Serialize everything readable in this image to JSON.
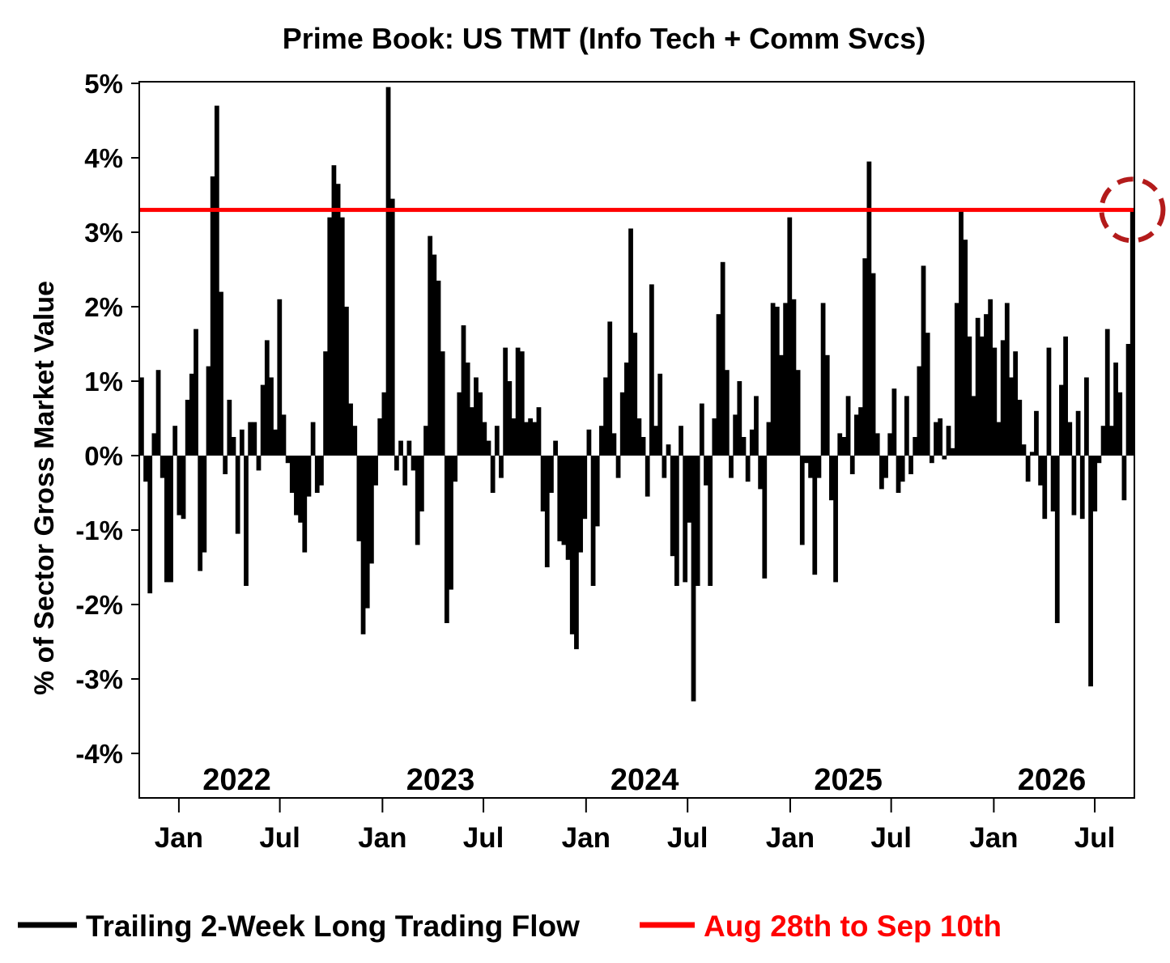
{
  "chart_data": {
    "type": "bar",
    "title": "Prime Book: US TMT (Info Tech + Comm Svcs)",
    "ylabel": "% of Sector Gross Market Value",
    "ylim": [
      -4.5,
      5
    ],
    "yticks": [
      "5%",
      "4%",
      "3%",
      "2%",
      "1%",
      "0%",
      "-1%",
      "-2%",
      "-3%",
      "-4%"
    ],
    "ytick_values": [
      5,
      4,
      3,
      2,
      1,
      0,
      -1,
      -2,
      -3,
      -4
    ],
    "x_start": "2021-10-22",
    "x_end": "2026-09-10",
    "month_ticks": [
      {
        "label": "Jan",
        "date": "2022-01-01"
      },
      {
        "label": "Jul",
        "date": "2022-07-01"
      },
      {
        "label": "Jan",
        "date": "2023-01-01"
      },
      {
        "label": "Jul",
        "date": "2023-07-01"
      },
      {
        "label": "Jan",
        "date": "2024-01-01"
      },
      {
        "label": "Jul",
        "date": "2024-07-01"
      },
      {
        "label": "Jan",
        "date": "2025-01-01"
      },
      {
        "label": "Jul",
        "date": "2025-07-01"
      },
      {
        "label": "Jan",
        "date": "2026-01-01"
      },
      {
        "label": "Jul",
        "date": "2026-07-01"
      }
    ],
    "year_labels": [
      {
        "label": "2022",
        "date": "2022-04-15"
      },
      {
        "label": "2023",
        "date": "2023-04-15"
      },
      {
        "label": "2024",
        "date": "2024-04-15"
      },
      {
        "label": "2025",
        "date": "2025-04-15"
      },
      {
        "label": "2026",
        "date": "2026-04-15"
      }
    ],
    "series": [
      {
        "name": "Trailing 2-Week Long Trading Flow",
        "color": "#000000",
        "frequency": "weekly",
        "values": [
          1.05,
          -0.35,
          -1.85,
          0.3,
          1.15,
          -0.3,
          -1.7,
          -1.7,
          0.4,
          -0.8,
          -0.85,
          0.75,
          1.1,
          1.7,
          -1.55,
          -1.3,
          1.2,
          3.75,
          4.7,
          2.2,
          -0.25,
          0.75,
          0.25,
          -1.05,
          0.35,
          -1.75,
          0.45,
          0.45,
          -0.2,
          0.95,
          1.55,
          1.05,
          0.35,
          2.1,
          0.55,
          -0.1,
          -0.5,
          -0.8,
          -0.9,
          -1.3,
          -0.55,
          0.45,
          -0.5,
          -0.4,
          1.4,
          3.2,
          3.9,
          3.65,
          3.2,
          2.0,
          0.7,
          0.4,
          -1.15,
          -2.4,
          -2.05,
          -1.45,
          -0.4,
          0.5,
          0.85,
          4.95,
          3.45,
          -0.2,
          0.2,
          -0.4,
          0.2,
          -0.2,
          -1.2,
          -0.75,
          0.4,
          2.95,
          2.7,
          2.35,
          1.4,
          -2.25,
          -1.8,
          -0.35,
          0.85,
          1.75,
          1.25,
          0.65,
          1.05,
          0.85,
          0.45,
          0.2,
          -0.5,
          0.4,
          -0.3,
          1.45,
          1.0,
          0.5,
          1.45,
          1.4,
          0.45,
          0.5,
          0.45,
          0.65,
          -0.75,
          -1.5,
          -0.5,
          0.2,
          -1.15,
          -1.2,
          -1.4,
          -2.4,
          -2.6,
          -1.3,
          -0.85,
          0.35,
          -1.75,
          -0.95,
          0.4,
          1.05,
          1.8,
          0.3,
          -0.3,
          0.85,
          1.25,
          3.05,
          1.65,
          0.5,
          0.25,
          -0.55,
          2.3,
          0.4,
          1.1,
          -0.3,
          0.15,
          -1.35,
          -1.75,
          0.4,
          -1.7,
          -0.9,
          -3.3,
          -1.75,
          0.7,
          -0.4,
          -1.75,
          0.5,
          1.9,
          2.6,
          1.15,
          -0.3,
          0.55,
          1.0,
          0.25,
          -0.35,
          0.35,
          0.8,
          -0.45,
          -1.65,
          0.45,
          2.05,
          2.0,
          1.35,
          2.05,
          3.2,
          2.1,
          1.15,
          -1.2,
          -0.1,
          -0.3,
          -1.6,
          -0.3,
          2.05,
          1.35,
          -0.6,
          -1.7,
          0.3,
          0.25,
          0.8,
          -0.25,
          0.55,
          0.65,
          2.65,
          3.95,
          2.45,
          0.3,
          -0.45,
          -0.3,
          0.3,
          0.9,
          -0.5,
          -0.35,
          0.8,
          -0.25,
          0.25,
          1.2,
          2.55,
          1.65,
          -0.1,
          0.45,
          0.5,
          -0.05,
          0.4,
          0.1,
          2.05,
          3.3,
          2.9,
          1.6,
          0.8,
          1.85,
          1.6,
          1.9,
          2.1,
          1.45,
          0.45,
          1.55,
          2.05,
          1.05,
          1.4,
          0.75,
          0.15,
          -0.35,
          0.05,
          0.6,
          -0.4,
          -0.85,
          1.45,
          -0.75,
          -2.25,
          0.95,
          1.6,
          0.45,
          -0.8,
          0.6,
          -0.85,
          1.05,
          -3.1,
          -0.75,
          -0.1,
          0.4,
          1.7,
          0.4,
          1.25,
          0.85,
          -0.6,
          1.5,
          3.3
        ]
      }
    ],
    "reference_line": {
      "name": "Aug 28th to Sep 10th",
      "value": 3.3,
      "color": "#ff0000"
    },
    "highlight_marker": {
      "style": "dashed-circle",
      "color": "#b31b1b",
      "target": "last-bar"
    },
    "grid": false,
    "legend": {
      "position": "bottom",
      "entries": [
        {
          "label": "Trailing 2-Week Long Trading Flow",
          "color": "#000000"
        },
        {
          "label": "Aug 28th to Sep 10th",
          "color": "#ff0000"
        }
      ]
    }
  }
}
